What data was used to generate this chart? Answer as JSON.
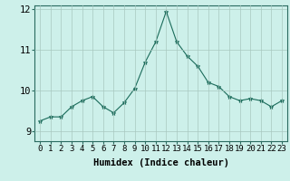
{
  "x": [
    0,
    1,
    2,
    3,
    4,
    5,
    6,
    7,
    8,
    9,
    10,
    11,
    12,
    13,
    14,
    15,
    16,
    17,
    18,
    19,
    20,
    21,
    22,
    23
  ],
  "y": [
    9.25,
    9.35,
    9.35,
    9.6,
    9.75,
    9.85,
    9.6,
    9.45,
    9.7,
    10.05,
    10.7,
    11.2,
    11.95,
    11.2,
    10.85,
    10.6,
    10.2,
    10.1,
    9.85,
    9.75,
    9.8,
    9.75,
    9.6,
    9.75
  ],
  "xlabel": "Humidex (Indice chaleur)",
  "ylim": [
    8.75,
    12.1
  ],
  "xlim": [
    -0.5,
    23.5
  ],
  "yticks": [
    9,
    10,
    11,
    12
  ],
  "xtick_labels": [
    "0",
    "1",
    "2",
    "3",
    "4",
    "5",
    "6",
    "7",
    "8",
    "9",
    "10",
    "11",
    "12",
    "13",
    "14",
    "15",
    "16",
    "17",
    "18",
    "19",
    "20",
    "21",
    "22",
    "23"
  ],
  "line_color": "#1a6b5a",
  "marker": "*",
  "marker_size": 3.5,
  "bg_color": "#cdf0ea",
  "grid_color": "#a8c8c0",
  "axis_color": "#2a6b60",
  "label_fontsize": 7.5,
  "tick_fontsize": 6.5
}
